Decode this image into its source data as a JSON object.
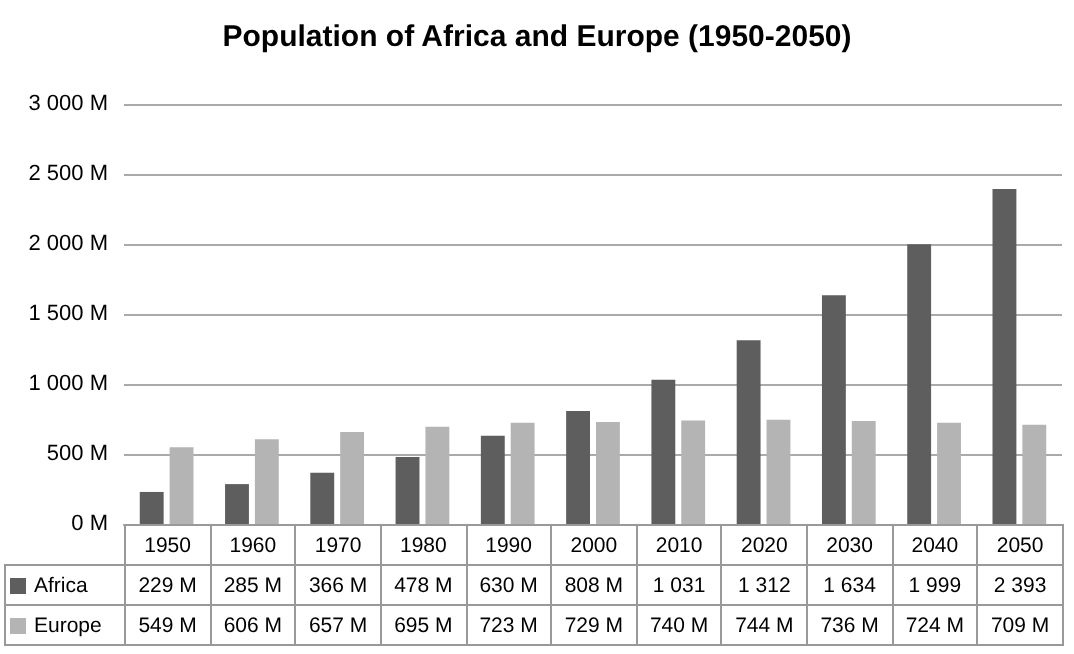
{
  "chart_data": {
    "type": "bar",
    "title": "Population of Africa and Europe (1950-2050)",
    "categories": [
      "1950",
      "1960",
      "1970",
      "1980",
      "1990",
      "2000",
      "2010",
      "2020",
      "2030",
      "2040",
      "2050"
    ],
    "series": [
      {
        "name": "Africa",
        "color": "#5e5e5e",
        "values": [
          229,
          285,
          366,
          478,
          630,
          808,
          1031,
          1312,
          1634,
          1999,
          2393
        ],
        "value_labels": [
          "229 M",
          "285 M",
          "366 M",
          "478 M",
          "630 M",
          "808 M",
          "1 031",
          "1 312",
          "1 634",
          "1 999",
          "2 393"
        ]
      },
      {
        "name": "Europe",
        "color": "#b4b4b4",
        "values": [
          549,
          606,
          657,
          695,
          723,
          729,
          740,
          744,
          736,
          724,
          709
        ],
        "value_labels": [
          "549 M",
          "606 M",
          "657 M",
          "695 M",
          "723 M",
          "729 M",
          "740 M",
          "744 M",
          "736 M",
          "724 M",
          "709 M"
        ]
      }
    ],
    "ylim": [
      0,
      3000
    ],
    "yticks": [
      {
        "value": 0,
        "label": "0 M"
      },
      {
        "value": 500,
        "label": "500 M"
      },
      {
        "value": 1000,
        "label": "1 000 M"
      },
      {
        "value": 1500,
        "label": "1 500 M"
      },
      {
        "value": 2000,
        "label": "2 000 M"
      },
      {
        "value": 2500,
        "label": "2 500 M"
      },
      {
        "value": 3000,
        "label": "3 000 M"
      }
    ],
    "grid": "y",
    "legend": "bottom left"
  }
}
